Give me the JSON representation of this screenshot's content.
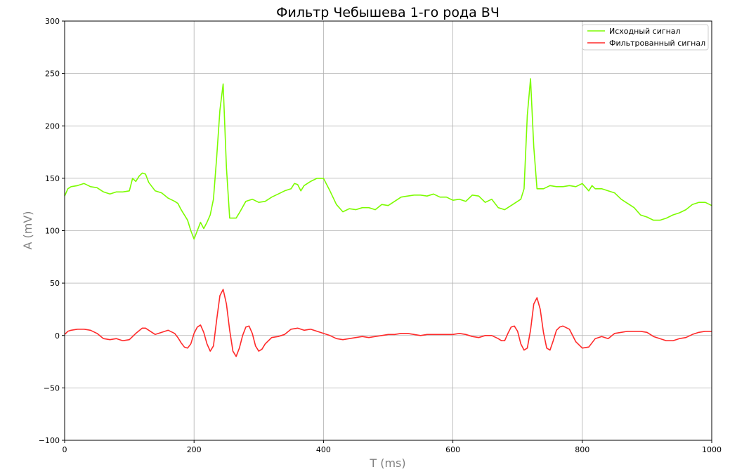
{
  "chart_data": {
    "type": "line",
    "title": "Фильтр Чебышева 1-го рода ВЧ",
    "xlabel": "T (ms)",
    "ylabel": "A (mV)",
    "xlim": [
      0,
      1000
    ],
    "ylim": [
      -100,
      300
    ],
    "xticks": [
      0,
      200,
      400,
      600,
      800,
      1000
    ],
    "xtick_labels": [
      "0",
      "200",
      "400",
      "600",
      "800",
      "1000"
    ],
    "yticks": [
      -100,
      -50,
      0,
      50,
      100,
      150,
      200,
      250,
      300
    ],
    "ytick_labels": [
      "−100",
      "−50",
      "0",
      "50",
      "100",
      "150",
      "200",
      "250",
      "300"
    ],
    "grid": true,
    "legend_position": "top-right",
    "series": [
      {
        "name": "Исходный сигнал",
        "color": "#7cfc00",
        "x": [
          0,
          5,
          10,
          20,
          30,
          40,
          50,
          60,
          70,
          80,
          90,
          100,
          105,
          110,
          115,
          120,
          125,
          130,
          140,
          150,
          160,
          170,
          175,
          180,
          185,
          190,
          195,
          200,
          205,
          210,
          215,
          220,
          225,
          230,
          235,
          240,
          245,
          250,
          255,
          260,
          265,
          270,
          280,
          290,
          300,
          310,
          320,
          330,
          340,
          350,
          355,
          360,
          365,
          370,
          380,
          390,
          400,
          410,
          420,
          430,
          440,
          450,
          460,
          470,
          480,
          490,
          500,
          510,
          520,
          530,
          540,
          550,
          560,
          570,
          580,
          590,
          600,
          610,
          620,
          630,
          640,
          650,
          660,
          670,
          680,
          690,
          700,
          705,
          710,
          715,
          720,
          725,
          730,
          740,
          750,
          760,
          770,
          780,
          790,
          800,
          810,
          815,
          820,
          830,
          840,
          850,
          860,
          870,
          880,
          890,
          900,
          910,
          920,
          930,
          940,
          950,
          960,
          970,
          980,
          990,
          1000
        ],
        "y": [
          133,
          140,
          142,
          143,
          145,
          142,
          141,
          137,
          135,
          137,
          137,
          138,
          150,
          147,
          152,
          155,
          154,
          146,
          138,
          136,
          131,
          128,
          126,
          120,
          115,
          110,
          100,
          92,
          100,
          108,
          102,
          108,
          115,
          130,
          170,
          215,
          240,
          160,
          112,
          112,
          112,
          117,
          128,
          130,
          127,
          128,
          132,
          135,
          138,
          140,
          145,
          144,
          138,
          143,
          147,
          150,
          150,
          138,
          125,
          118,
          121,
          120,
          122,
          122,
          120,
          125,
          124,
          128,
          132,
          133,
          134,
          134,
          133,
          135,
          132,
          132,
          129,
          130,
          128,
          134,
          133,
          127,
          130,
          122,
          120,
          124,
          128,
          130,
          140,
          210,
          245,
          180,
          140,
          140,
          143,
          142,
          142,
          143,
          142,
          145,
          138,
          143,
          140,
          140,
          138,
          136,
          130,
          126,
          122,
          115,
          113,
          110,
          110,
          112,
          115,
          117,
          120,
          125,
          127,
          127,
          124
        ]
      },
      {
        "name": "Фильтрованный сигнал",
        "color": "#ff2a2a",
        "x": [
          0,
          5,
          10,
          20,
          30,
          40,
          50,
          60,
          70,
          80,
          90,
          100,
          110,
          120,
          125,
          130,
          140,
          150,
          160,
          170,
          175,
          180,
          185,
          190,
          195,
          200,
          205,
          210,
          215,
          220,
          225,
          230,
          235,
          240,
          245,
          250,
          255,
          260,
          265,
          270,
          275,
          280,
          285,
          290,
          295,
          300,
          305,
          310,
          320,
          330,
          340,
          350,
          360,
          370,
          380,
          390,
          400,
          410,
          420,
          430,
          440,
          450,
          460,
          470,
          480,
          490,
          500,
          510,
          520,
          530,
          540,
          550,
          560,
          570,
          580,
          590,
          600,
          610,
          620,
          630,
          640,
          650,
          660,
          670,
          675,
          680,
          685,
          690,
          695,
          700,
          705,
          710,
          715,
          720,
          725,
          730,
          735,
          740,
          745,
          750,
          755,
          760,
          765,
          770,
          780,
          790,
          800,
          810,
          820,
          830,
          840,
          850,
          860,
          870,
          880,
          890,
          900,
          910,
          920,
          930,
          940,
          950,
          960,
          970,
          980,
          990,
          1000
        ],
        "y": [
          1,
          4,
          5,
          6,
          6,
          5,
          2,
          -3,
          -4,
          -3,
          -5,
          -4,
          2,
          7,
          7,
          5,
          1,
          3,
          5,
          2,
          -2,
          -7,
          -11,
          -12,
          -8,
          2,
          8,
          10,
          3,
          -8,
          -15,
          -10,
          15,
          38,
          44,
          30,
          5,
          -15,
          -20,
          -12,
          0,
          8,
          9,
          2,
          -10,
          -15,
          -13,
          -8,
          -2,
          -1,
          1,
          6,
          7,
          5,
          6,
          4,
          2,
          0,
          -3,
          -4,
          -3,
          -2,
          -1,
          -2,
          -1,
          0,
          1,
          1,
          2,
          2,
          1,
          0,
          1,
          1,
          1,
          1,
          1,
          2,
          1,
          -1,
          -2,
          0,
          0,
          -3,
          -5,
          -5,
          2,
          8,
          9,
          4,
          -8,
          -14,
          -12,
          5,
          30,
          36,
          25,
          3,
          -12,
          -14,
          -5,
          5,
          8,
          9,
          6,
          -6,
          -12,
          -11,
          -3,
          -1,
          -3,
          2,
          3,
          4,
          4,
          4,
          3,
          -1,
          -3,
          -5,
          -5,
          -3,
          -2,
          1,
          3,
          4,
          4
        ]
      }
    ]
  }
}
